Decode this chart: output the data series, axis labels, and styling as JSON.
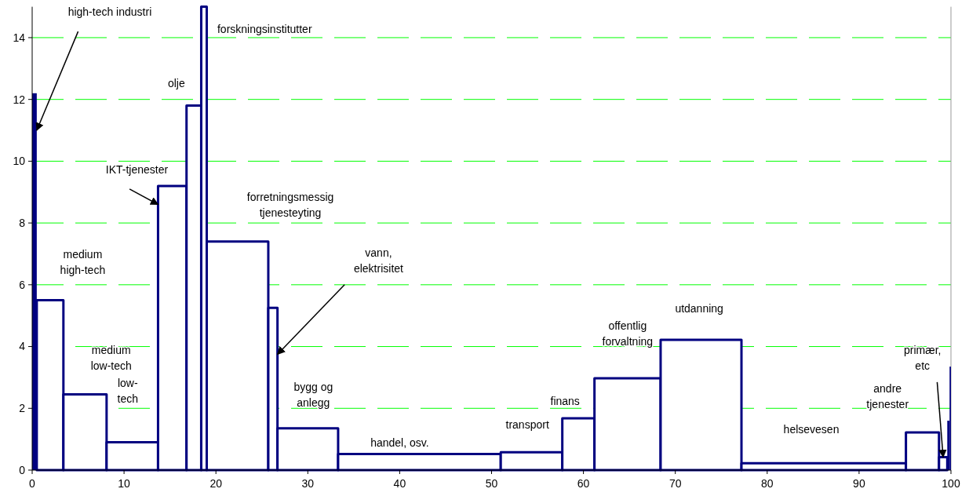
{
  "chart_data": {
    "type": "histogram",
    "bins": [
      0,
      0.5,
      3.4,
      8.1,
      13.7,
      16.8,
      18.4,
      19.0,
      25.7,
      26.7,
      33.3,
      51.0,
      57.7,
      61.2,
      68.4,
      77.2,
      95.1,
      98.7,
      99.6,
      99.85,
      100
    ],
    "values": [
      12.2,
      5.5,
      2.45,
      0.9,
      9.2,
      11.8,
      15,
      7.4,
      5.25,
      1.35,
      0.52,
      0.58,
      1.68,
      2.97,
      4.22,
      0.22,
      1.22,
      0.42,
      1.6,
      3.35
    ],
    "color": "#000080",
    "xlim": [
      0,
      100
    ],
    "xticks": [
      0,
      10,
      20,
      30,
      40,
      50,
      60,
      70,
      80,
      90,
      100
    ],
    "ylim": [
      0,
      15
    ],
    "yticks": [
      0,
      2,
      4,
      6,
      8,
      10,
      12,
      14
    ],
    "grid": "y",
    "annotations": [
      {
        "text": "high-tech industri",
        "x": 0.5,
        "y": 11
      },
      "medium\nhigh-tech",
      "medium\nlow-tech",
      "low-\ntech",
      {
        "text": "IKT-tjenester",
        "x": 13.7,
        "y": 8.6
      },
      "olje",
      "forskningsinstitutter",
      "forretningsmessig\ntjenesteyting",
      {
        "text": "vann,\nelektrisitet",
        "x": 26.7,
        "y": 3.75
      },
      "bygg og\nanlegg",
      "handel, osv.",
      "transport",
      "finans",
      "offentlig\nforvaltning",
      "utdanning",
      "helsevesen",
      "andre\ntjenester",
      {
        "text": "primær,\netc",
        "x": 99.15,
        "y": 0.42
      }
    ]
  }
}
